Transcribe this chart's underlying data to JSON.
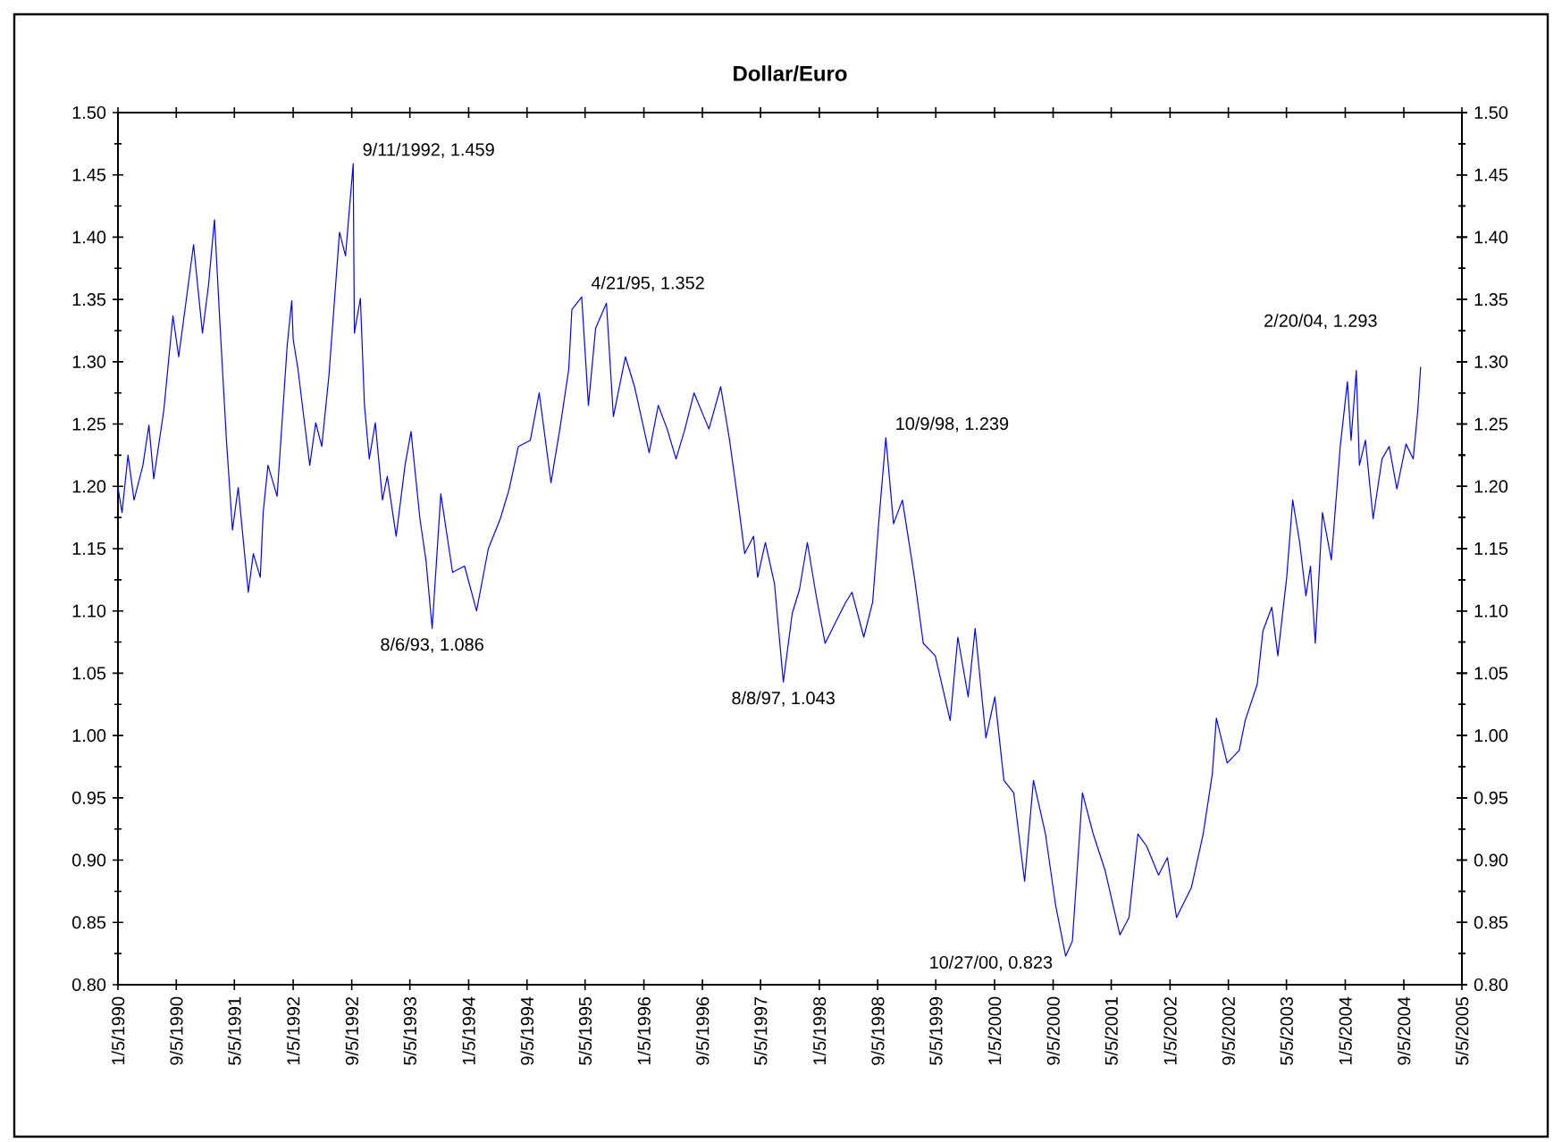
{
  "chart_data": {
    "type": "line",
    "title": "Dollar/Euro",
    "color": "#0000ff",
    "x": [
      "1990-01-05",
      "1990-01-22",
      "1990-02-16",
      "1990-03-13",
      "1990-04-19",
      "1990-05-14",
      "1990-06-03",
      "1990-07-15",
      "1990-08-22",
      "1990-09-15",
      "1990-11-16",
      "1990-12-23",
      "1991-01-17",
      "1991-02-11",
      "1991-03-08",
      "1991-04-02",
      "1991-04-27",
      "1991-05-21",
      "1991-07-02",
      "1991-07-23",
      "1991-08-21",
      "1991-09-02",
      "1991-09-22",
      "1991-10-30",
      "1991-12-11",
      "1991-12-30",
      "1992-01-05",
      "1992-01-25",
      "1992-02-18",
      "1992-03-14",
      "1992-04-08",
      "1992-05-03",
      "1992-06-02",
      "1992-07-16",
      "1992-08-10",
      "1992-09-11",
      "1992-09-16",
      "1992-10-11",
      "1992-10-28",
      "1992-11-17",
      "1992-12-12",
      "1993-01-11",
      "1993-01-31",
      "1993-03-09",
      "1993-04-15",
      "1993-05-10",
      "1993-06-16",
      "1993-07-11",
      "1993-08-06",
      "1993-09-11",
      "1993-10-30",
      "1993-12-19",
      "1994-02-07",
      "1994-03-28",
      "1994-05-17",
      "1994-06-23",
      "1994-07-31",
      "1994-09-19",
      "1994-10-26",
      "1994-12-14",
      "1995-01-20",
      "1995-02-26",
      "1995-03-11",
      "1995-04-21",
      "1995-05-19",
      "1995-06-18",
      "1995-08-02",
      "1995-08-31",
      "1995-10-20",
      "1995-11-27",
      "1996-01-27",
      "1996-03-05",
      "1996-04-11",
      "1996-05-18",
      "1996-06-24",
      "1996-08-01",
      "1996-10-02",
      "1996-11-20",
      "1996-12-27",
      "1997-02-03",
      "1997-02-28",
      "1997-04-06",
      "1997-04-23",
      "1997-05-25",
      "1997-07-02",
      "1997-08-08",
      "1997-09-14",
      "1997-10-14",
      "1997-11-16",
      "1997-12-23",
      "1998-01-29",
      "1998-03-19",
      "1998-04-25",
      "1998-05-21",
      "1998-07-09",
      "1998-08-15",
      "1998-09-09",
      "1998-10-09",
      "1998-11-10",
      "1998-12-17",
      "1999-02-05",
      "1999-03-14",
      "1999-05-03",
      "1999-07-04",
      "1999-08-05",
      "1999-09-17",
      "1999-10-16",
      "1999-11-30",
      "2000-01-06",
      "2000-02-13",
      "2000-03-25",
      "2000-05-09",
      "2000-06-15",
      "2000-08-04",
      "2000-09-15",
      "2000-10-27",
      "2000-11-24",
      "2001-01-05",
      "2001-02-19",
      "2001-04-09",
      "2001-06-10",
      "2001-07-18",
      "2001-08-24",
      "2001-09-30",
      "2001-11-18",
      "2001-12-25",
      "2002-02-01",
      "2002-04-04",
      "2002-05-23",
      "2002-06-30",
      "2002-07-17",
      "2002-08-31",
      "2002-10-20",
      "2002-11-14",
      "2003-01-03",
      "2003-01-27",
      "2003-03-05",
      "2003-03-30",
      "2003-05-06",
      "2003-05-31",
      "2003-06-29",
      "2003-07-25",
      "2003-08-13",
      "2003-09-02",
      "2003-10-02",
      "2003-11-08",
      "2003-12-15",
      "2004-01-14",
      "2004-01-29",
      "2004-02-20",
      "2004-03-04",
      "2004-03-29",
      "2004-04-30",
      "2004-06-06",
      "2004-07-06",
      "2004-08-07",
      "2004-09-14",
      "2004-10-14",
      "2004-11-02",
      "2004-11-14"
    ],
    "values": [
      1.199,
      1.179,
      1.225,
      1.189,
      1.217,
      1.249,
      1.206,
      1.261,
      1.337,
      1.304,
      1.394,
      1.323,
      1.361,
      1.414,
      1.323,
      1.237,
      1.165,
      1.199,
      1.115,
      1.146,
      1.127,
      1.179,
      1.217,
      1.192,
      1.313,
      1.349,
      1.318,
      1.294,
      1.256,
      1.217,
      1.251,
      1.232,
      1.289,
      1.404,
      1.385,
      1.459,
      1.323,
      1.351,
      1.265,
      1.222,
      1.251,
      1.189,
      1.208,
      1.16,
      1.217,
      1.244,
      1.174,
      1.141,
      1.086,
      1.194,
      1.131,
      1.136,
      1.1,
      1.15,
      1.174,
      1.198,
      1.232,
      1.237,
      1.275,
      1.203,
      1.246,
      1.294,
      1.342,
      1.352,
      1.265,
      1.327,
      1.347,
      1.256,
      1.304,
      1.28,
      1.227,
      1.265,
      1.246,
      1.222,
      1.246,
      1.275,
      1.246,
      1.28,
      1.237,
      1.184,
      1.146,
      1.16,
      1.127,
      1.155,
      1.122,
      1.043,
      1.098,
      1.117,
      1.155,
      1.112,
      1.074,
      1.093,
      1.107,
      1.115,
      1.079,
      1.107,
      1.17,
      1.239,
      1.17,
      1.189,
      1.127,
      1.074,
      1.064,
      1.012,
      1.079,
      1.031,
      1.086,
      0.998,
      1.031,
      0.964,
      0.954,
      0.883,
      0.964,
      0.921,
      0.864,
      0.823,
      0.835,
      0.954,
      0.921,
      0.892,
      0.84,
      0.854,
      0.921,
      0.911,
      0.888,
      0.902,
      0.854,
      0.878,
      0.921,
      0.969,
      1.014,
      0.978,
      0.988,
      1.012,
      1.041,
      1.084,
      1.103,
      1.064,
      1.127,
      1.189,
      1.155,
      1.112,
      1.136,
      1.074,
      1.179,
      1.141,
      1.232,
      1.284,
      1.237,
      1.293,
      1.217,
      1.237,
      1.174,
      1.222,
      1.232,
      1.198,
      1.234,
      1.222,
      1.261,
      1.296
    ],
    "xlim": [
      "1990-01-05",
      "2005-05-05"
    ],
    "xticks": [
      {
        "value": "1990-01-05",
        "label": "1/5/1990"
      },
      {
        "value": "1990-09-05",
        "label": "9/5/1990"
      },
      {
        "value": "1991-05-05",
        "label": "5/5/1991"
      },
      {
        "value": "1992-01-05",
        "label": "1/5/1992"
      },
      {
        "value": "1992-09-05",
        "label": "9/5/1992"
      },
      {
        "value": "1993-05-05",
        "label": "5/5/1993"
      },
      {
        "value": "1994-01-05",
        "label": "1/5/1994"
      },
      {
        "value": "1994-09-05",
        "label": "9/5/1994"
      },
      {
        "value": "1995-05-05",
        "label": "5/5/1995"
      },
      {
        "value": "1996-01-05",
        "label": "1/5/1996"
      },
      {
        "value": "1996-09-05",
        "label": "9/5/1996"
      },
      {
        "value": "1997-05-05",
        "label": "5/5/1997"
      },
      {
        "value": "1998-01-05",
        "label": "1/5/1998"
      },
      {
        "value": "1998-09-05",
        "label": "9/5/1998"
      },
      {
        "value": "1999-05-05",
        "label": "5/5/1999"
      },
      {
        "value": "2000-01-05",
        "label": "1/5/2000"
      },
      {
        "value": "2000-09-05",
        "label": "9/5/2000"
      },
      {
        "value": "2001-05-05",
        "label": "5/5/2001"
      },
      {
        "value": "2002-01-05",
        "label": "1/5/2002"
      },
      {
        "value": "2002-09-05",
        "label": "9/5/2002"
      },
      {
        "value": "2003-05-05",
        "label": "5/5/2003"
      },
      {
        "value": "2004-01-05",
        "label": "1/5/2004"
      },
      {
        "value": "2004-09-05",
        "label": "9/5/2004"
      },
      {
        "value": "2005-05-05",
        "label": "5/5/2005"
      }
    ],
    "ylim": [
      0.8,
      1.5
    ],
    "yticks": [
      {
        "value": 0.8,
        "label": "0.80"
      },
      {
        "value": 0.85,
        "label": "0.85"
      },
      {
        "value": 0.9,
        "label": "0.90"
      },
      {
        "value": 0.95,
        "label": "0.95"
      },
      {
        "value": 1.0,
        "label": "1.00"
      },
      {
        "value": 1.05,
        "label": "1.05"
      },
      {
        "value": 1.1,
        "label": "1.10"
      },
      {
        "value": 1.15,
        "label": "1.15"
      },
      {
        "value": 1.2,
        "label": "1.20"
      },
      {
        "value": 1.25,
        "label": "1.25"
      },
      {
        "value": 1.3,
        "label": "1.30"
      },
      {
        "value": 1.35,
        "label": "1.35"
      },
      {
        "value": 1.4,
        "label": "1.40"
      },
      {
        "value": 1.45,
        "label": "1.45"
      },
      {
        "value": 1.5,
        "label": "1.50"
      }
    ],
    "y2lim": [
      0.8,
      1.5
    ],
    "y2ticks": [
      {
        "value": 0.8,
        "label": "0.80"
      },
      {
        "value": 0.85,
        "label": "0.85"
      },
      {
        "value": 0.9,
        "label": "0.90"
      },
      {
        "value": 0.95,
        "label": "0.95"
      },
      {
        "value": 1.0,
        "label": "1.00"
      },
      {
        "value": 1.05,
        "label": "1.05"
      },
      {
        "value": 1.1,
        "label": "1.10"
      },
      {
        "value": 1.15,
        "label": "1.15"
      },
      {
        "value": 1.2,
        "label": "1.20"
      },
      {
        "value": 1.25,
        "label": "1.25"
      },
      {
        "value": 1.3,
        "label": "1.30"
      },
      {
        "value": 1.35,
        "label": "1.35"
      },
      {
        "value": 1.4,
        "label": "1.40"
      },
      {
        "value": 1.45,
        "label": "1.45"
      },
      {
        "value": 1.5,
        "label": "1.50"
      }
    ],
    "annotations": [
      {
        "text": "9/11/1992, 1.459",
        "x": "1992-09-11",
        "y": 1.459
      },
      {
        "text": "8/6/93, 1.086",
        "x": "1993-08-06",
        "y": 1.086
      },
      {
        "text": "4/21/95, 1.352",
        "x": "1995-04-21",
        "y": 1.352
      },
      {
        "text": "8/8/97, 1.043",
        "x": "1997-08-08",
        "y": 1.043
      },
      {
        "text": "10/9/98, 1.239",
        "x": "1998-10-09",
        "y": 1.239
      },
      {
        "text": "10/27/00, 0.823",
        "x": "2000-10-27",
        "y": 0.823
      },
      {
        "text": "2/20/04, 1.293",
        "x": "2004-02-20",
        "y": 1.293
      }
    ]
  }
}
